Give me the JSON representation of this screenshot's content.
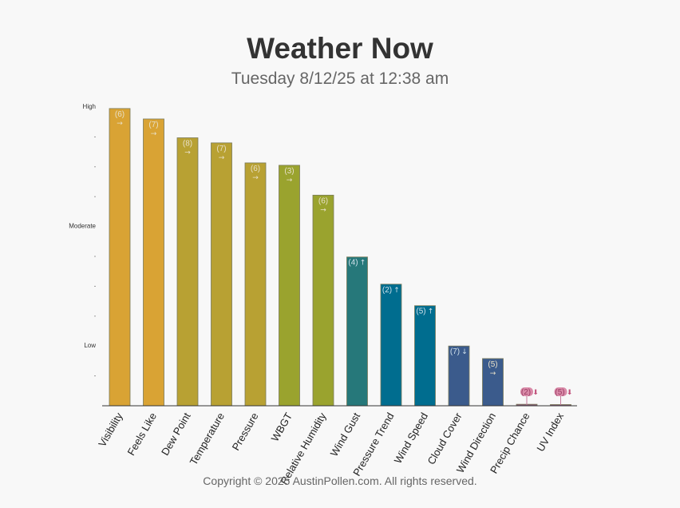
{
  "header": {
    "title": "Weather Now",
    "subtitle": "Tuesday 8/12/25 at 12:38 am"
  },
  "footer": {
    "copyright": "Copyright © 2025 AustinPollen.com.   All rights reserved."
  },
  "chart_data": {
    "type": "bar",
    "y_scale_labels": {
      "high": "High",
      "moderate": "Moderate",
      "low": "Low"
    },
    "y_levels": {
      "high": 10,
      "moderate": 6,
      "low": 2
    },
    "ylim": [
      0,
      10
    ],
    "grid": false,
    "legend": "none",
    "categories": [
      "Visibility",
      "Feels Like",
      "Dew Point",
      "Temperature",
      "Pressure",
      "WBGT",
      "Relative Humidity",
      "Wind Gust",
      "Pressure Trend",
      "Wind Speed",
      "Cloud Cover",
      "Wind Direction",
      "Precip Chance",
      "UV Index"
    ],
    "values": [
      9.95,
      9.6,
      8.97,
      8.8,
      8.13,
      8.05,
      7.05,
      4.98,
      4.07,
      3.35,
      2.0,
      1.58,
      0.05,
      0.02
    ],
    "labels": [
      "(6)",
      "(7)",
      "(8)",
      "(7)",
      "(6)",
      "(3)",
      "(6)",
      "(4)",
      "(2)",
      "(5)",
      "(7)",
      "(5)",
      "(2)",
      "(5)"
    ],
    "trends": [
      "→",
      "→",
      "→",
      "→",
      "→",
      "→",
      "→",
      "↑",
      "↑",
      "↑",
      "↓",
      "→",
      "⬇",
      "⬇"
    ],
    "colors": [
      "#d9a334",
      "#d9a334",
      "#b8a133",
      "#b8a133",
      "#b8a133",
      "#9aa32e",
      "#9aa32e",
      "#26787a",
      "#006d8f",
      "#006d8f",
      "#3b5b8c",
      "#3b5b8c",
      "#8a5a7a",
      "#8a5a7a"
    ]
  }
}
